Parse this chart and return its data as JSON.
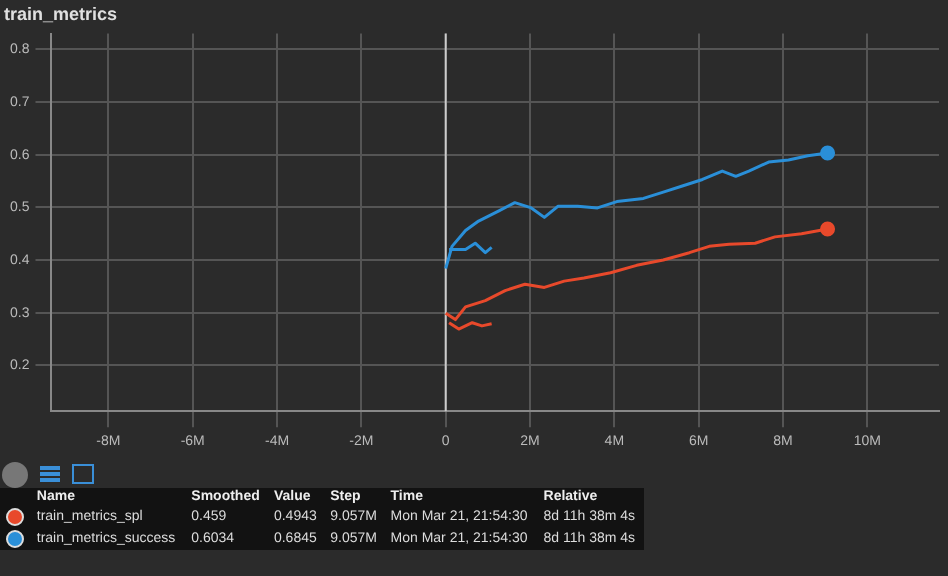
{
  "chart_data": {
    "type": "line",
    "title": "train_metrics",
    "xlim": [
      -9.35,
      11.7
    ],
    "xticks": [
      {
        "value": -8,
        "label": "-8M"
      },
      {
        "value": -6,
        "label": "-6M"
      },
      {
        "value": -4,
        "label": "-4M"
      },
      {
        "value": -2,
        "label": "-2M"
      },
      0,
      {
        "value": 2,
        "label": "2M"
      },
      {
        "value": 4,
        "label": "4M"
      },
      {
        "value": 6,
        "label": "6M"
      },
      {
        "value": 8,
        "label": "8M"
      },
      {
        "value": 10,
        "label": "10M"
      }
    ],
    "ylim": [
      0.113,
      0.83
    ],
    "yticks": [
      0.2,
      0.3,
      0.4,
      0.5,
      0.6,
      0.7,
      0.8
    ],
    "grid": true,
    "legend": "bottom",
    "line_style": "solid",
    "ref_lines": [
      {
        "axis": "x",
        "value": 0,
        "color": "#cccccc"
      }
    ],
    "series": [
      {
        "name": "train_metrics_spl",
        "color": "#e8492b",
        "x": [
          0,
          0.23,
          0.47,
          0.94,
          1.41,
          1.88,
          2.34,
          2.81,
          3.28,
          3.91,
          4.53,
          5.16,
          5.78,
          6.25,
          6.72,
          7.34,
          7.81,
          8.44,
          9.057
        ],
        "values": [
          0.299,
          0.287,
          0.311,
          0.323,
          0.342,
          0.354,
          0.348,
          0.36,
          0.366,
          0.376,
          0.39,
          0.4,
          0.414,
          0.426,
          0.43,
          0.432,
          0.444,
          0.45,
          0.459
        ]
      },
      {
        "name": "train_metrics_success",
        "color": "#2a8fd8",
        "x": [
          0,
          0.15,
          0.47,
          0.78,
          1.25,
          1.64,
          2.03,
          2.34,
          2.66,
          3.13,
          3.6,
          4.06,
          4.69,
          5.16,
          5.63,
          6.09,
          6.56,
          6.88,
          7.19,
          7.66,
          8.13,
          8.59,
          9.057
        ],
        "values": [
          0.384,
          0.426,
          0.456,
          0.474,
          0.493,
          0.509,
          0.499,
          0.481,
          0.502,
          0.502,
          0.499,
          0.511,
          0.517,
          0.529,
          0.541,
          0.553,
          0.569,
          0.559,
          0.569,
          0.586,
          0.59,
          0.598,
          0.6034
        ]
      },
      {
        "color": "#e8492b",
        "x": [
          0.08,
          0.31,
          0.63,
          0.86,
          1.09
        ],
        "values": [
          0.281,
          0.269,
          0.281,
          0.275,
          0.279
        ]
      },
      {
        "color": "#2a8fd8",
        "x": [
          0.08,
          0.47,
          0.7,
          0.94,
          1.09
        ],
        "values": [
          0.42,
          0.42,
          0.432,
          0.414,
          0.424
        ]
      }
    ],
    "annotations": [
      "Name",
      "Smoothed",
      "Value",
      "Step",
      "Time",
      "Relative",
      "0.459",
      "0.4943",
      "9.057M",
      "Mon Mar 21, 21:54:30",
      "8d 11h 38m 4s",
      "0.6034",
      "0.6845",
      "9.057M",
      "Mon Mar 21, 21:54:30",
      "8d 11h 38m 4s"
    ]
  }
}
